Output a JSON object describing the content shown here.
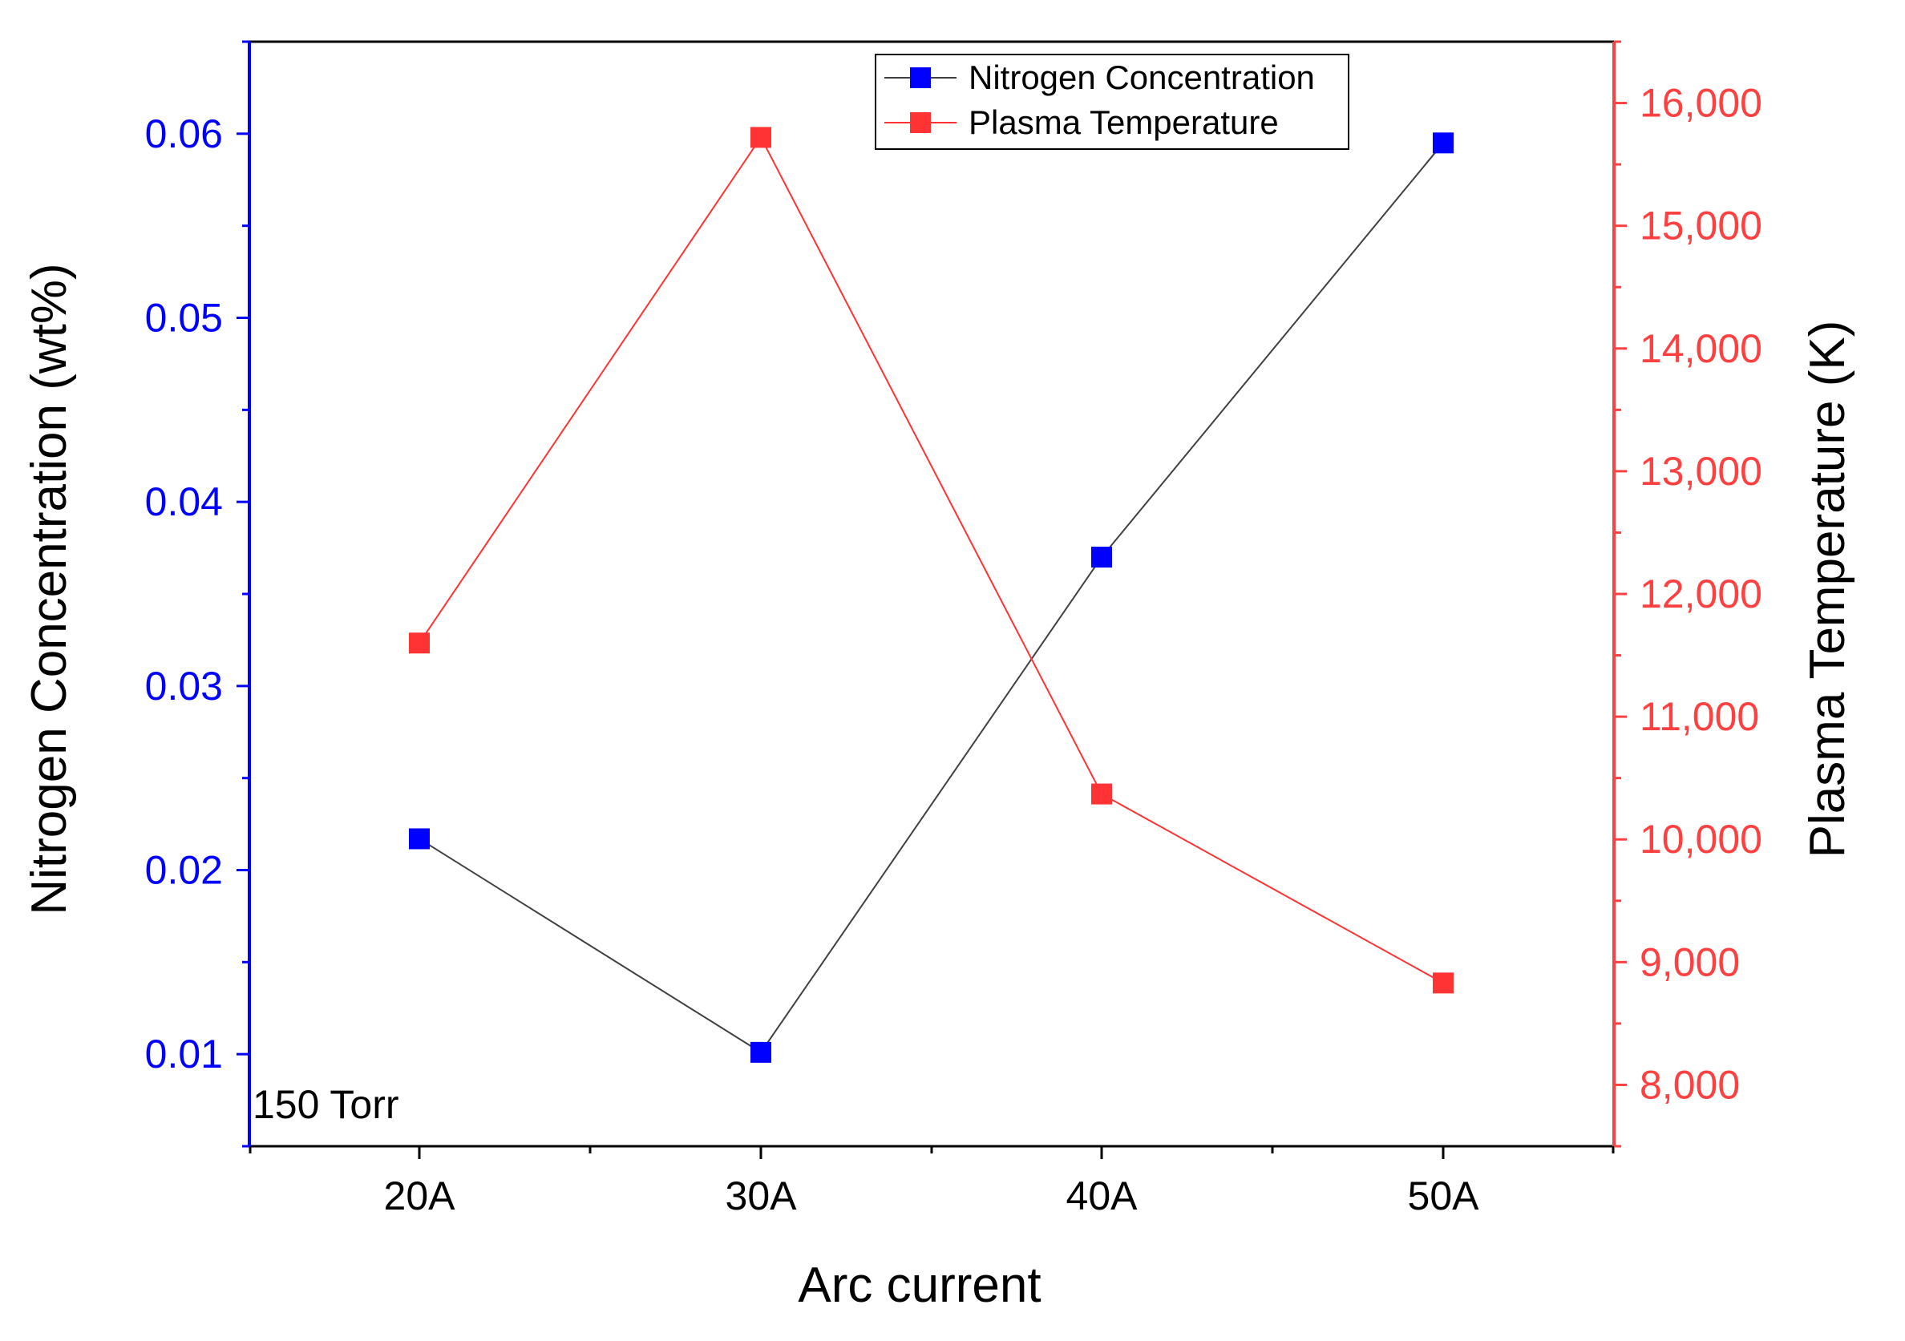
{
  "chart_data": {
    "type": "line",
    "categories": [
      "20A",
      "30A",
      "40A",
      "50A"
    ],
    "xlabel": "Arc current",
    "annotation": "150 Torr",
    "colors": {
      "left_axis": "#0000ff",
      "right_axis": "#ff4040",
      "nitrogen_line": "#404040",
      "nitrogen_marker": "#0000ff",
      "plasma_line": "#ff3333",
      "plasma_marker": "#ff3333",
      "frame": "#000000"
    },
    "left_axis": {
      "label": "Nitrogen Concentration (wt%)",
      "ylim": [
        0.005,
        0.065
      ],
      "ticks": [
        0.01,
        0.02,
        0.03,
        0.04,
        0.05,
        0.06
      ],
      "tick_labels": [
        "0.01",
        "0.02",
        "0.03",
        "0.04",
        "0.05",
        "0.06"
      ]
    },
    "right_axis": {
      "label": "Plasma Temperature (K)",
      "ylim": [
        7500,
        16500
      ],
      "ticks": [
        8000,
        9000,
        10000,
        11000,
        12000,
        13000,
        14000,
        15000,
        16000
      ],
      "tick_labels": [
        "8,000",
        "9,000",
        "10,000",
        "11,000",
        "12,000",
        "13,000",
        "14,000",
        "15,000",
        "16,000"
      ]
    },
    "series": [
      {
        "name": "Nitrogen Concentration",
        "axis": "left",
        "values": [
          0.0217,
          0.0101,
          0.037,
          0.0595
        ]
      },
      {
        "name": "Plasma Temperature",
        "axis": "right",
        "values": [
          11600,
          15720,
          10370,
          8830
        ]
      }
    ],
    "legend": {
      "position": "top-center",
      "entries": [
        "Nitrogen Concentration",
        "Plasma Temperature"
      ]
    }
  }
}
